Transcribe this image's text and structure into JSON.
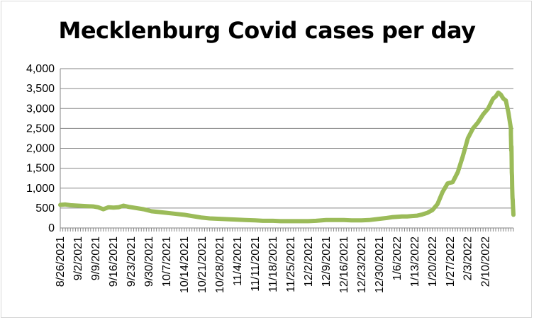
{
  "chart_data": {
    "type": "line",
    "title": "Mecklenburg Covid cases per day",
    "xlabel": "",
    "ylabel": "",
    "ylim": [
      0,
      4000
    ],
    "yticks": [
      0,
      500,
      1000,
      1500,
      2000,
      2500,
      3000,
      3500,
      4000
    ],
    "ytick_labels": [
      "0",
      "500",
      "1,000",
      "1,500",
      "2,000",
      "2,500",
      "3,000",
      "3,500",
      "4,000"
    ],
    "x_start": "2021-08-26",
    "x_end": "2022-02-21",
    "xtick_labels": [
      "8/26/2021",
      "9/2/2021",
      "9/9/2021",
      "9/16/2021",
      "9/23/2021",
      "9/30/2021",
      "10/7/2021",
      "10/14/2021",
      "10/21/2021",
      "10/28/2021",
      "11/4/2021",
      "11/11/2021",
      "11/18/2021",
      "11/25/2021",
      "12/2/2021",
      "12/9/2021",
      "12/16/2021",
      "12/23/2021",
      "12/30/2021",
      "1/6/2022",
      "1/13/2022",
      "1/20/2022",
      "1/27/2022",
      "2/3/2022",
      "2/10/2022"
    ],
    "grid": "horizontal",
    "legend": "none",
    "series": [
      {
        "color": "#9bbb59",
        "points": [
          [
            "2021-08-26",
            580
          ],
          [
            "2021-08-28",
            590
          ],
          [
            "2021-08-30",
            570
          ],
          [
            "2021-09-02",
            560
          ],
          [
            "2021-09-05",
            550
          ],
          [
            "2021-09-08",
            540
          ],
          [
            "2021-09-10",
            520
          ],
          [
            "2021-09-12",
            470
          ],
          [
            "2021-09-14",
            520
          ],
          [
            "2021-09-16",
            510
          ],
          [
            "2021-09-18",
            520
          ],
          [
            "2021-09-20",
            560
          ],
          [
            "2021-09-22",
            530
          ],
          [
            "2021-09-25",
            500
          ],
          [
            "2021-09-28",
            470
          ],
          [
            "2021-10-01",
            420
          ],
          [
            "2021-10-04",
            400
          ],
          [
            "2021-10-07",
            380
          ],
          [
            "2021-10-10",
            360
          ],
          [
            "2021-10-14",
            330
          ],
          [
            "2021-10-17",
            300
          ],
          [
            "2021-10-21",
            260
          ],
          [
            "2021-10-24",
            240
          ],
          [
            "2021-10-28",
            230
          ],
          [
            "2021-10-31",
            220
          ],
          [
            "2021-11-04",
            210
          ],
          [
            "2021-11-07",
            200
          ],
          [
            "2021-11-11",
            190
          ],
          [
            "2021-11-14",
            180
          ],
          [
            "2021-11-18",
            180
          ],
          [
            "2021-11-21",
            170
          ],
          [
            "2021-11-25",
            170
          ],
          [
            "2021-11-28",
            170
          ],
          [
            "2021-12-02",
            170
          ],
          [
            "2021-12-05",
            180
          ],
          [
            "2021-12-09",
            200
          ],
          [
            "2021-12-12",
            200
          ],
          [
            "2021-12-16",
            200
          ],
          [
            "2021-12-19",
            190
          ],
          [
            "2021-12-23",
            190
          ],
          [
            "2021-12-26",
            200
          ],
          [
            "2021-12-30",
            230
          ],
          [
            "2022-01-02",
            250
          ],
          [
            "2022-01-04",
            270
          ],
          [
            "2022-01-06",
            280
          ],
          [
            "2022-01-08",
            290
          ],
          [
            "2022-01-10",
            290
          ],
          [
            "2022-01-12",
            300
          ],
          [
            "2022-01-14",
            310
          ],
          [
            "2022-01-16",
            340
          ],
          [
            "2022-01-18",
            380
          ],
          [
            "2022-01-20",
            450
          ],
          [
            "2022-01-22",
            600
          ],
          [
            "2022-01-24",
            900
          ],
          [
            "2022-01-26",
            1120
          ],
          [
            "2022-01-28",
            1150
          ],
          [
            "2022-01-30",
            1400
          ],
          [
            "2022-02-01",
            1800
          ],
          [
            "2022-02-03",
            2250
          ],
          [
            "2022-02-05",
            2500
          ],
          [
            "2022-02-07",
            2650
          ],
          [
            "2022-02-09",
            2850
          ],
          [
            "2022-02-11",
            3000
          ],
          [
            "2022-02-13",
            3250
          ],
          [
            "2022-02-14",
            3300
          ],
          [
            "2022-02-15",
            3400
          ],
          [
            "2022-02-16",
            3350
          ],
          [
            "2022-02-17",
            3250
          ],
          [
            "2022-02-18",
            3200
          ],
          [
            "2022-02-19",
            2900
          ],
          [
            "2022-02-20",
            2500
          ],
          [
            "2022-02-20",
            2350
          ],
          [
            "2022-02-21",
            2150
          ],
          [
            "2022-02-21",
            1950
          ],
          [
            "2022-02-21",
            2050
          ],
          [
            "2022-02-21",
            1700
          ],
          [
            "2022-02-21",
            1400
          ],
          [
            "2022-02-21",
            1300
          ],
          [
            "2022-02-21",
            1050
          ],
          [
            "2022-02-21",
            850
          ],
          [
            "2022-02-21",
            750
          ],
          [
            "2022-02-21",
            700
          ],
          [
            "2022-02-21",
            600
          ],
          [
            "2022-02-21",
            500
          ],
          [
            "2022-02-21",
            440
          ],
          [
            "2022-02-21",
            330
          ]
        ]
      }
    ]
  }
}
